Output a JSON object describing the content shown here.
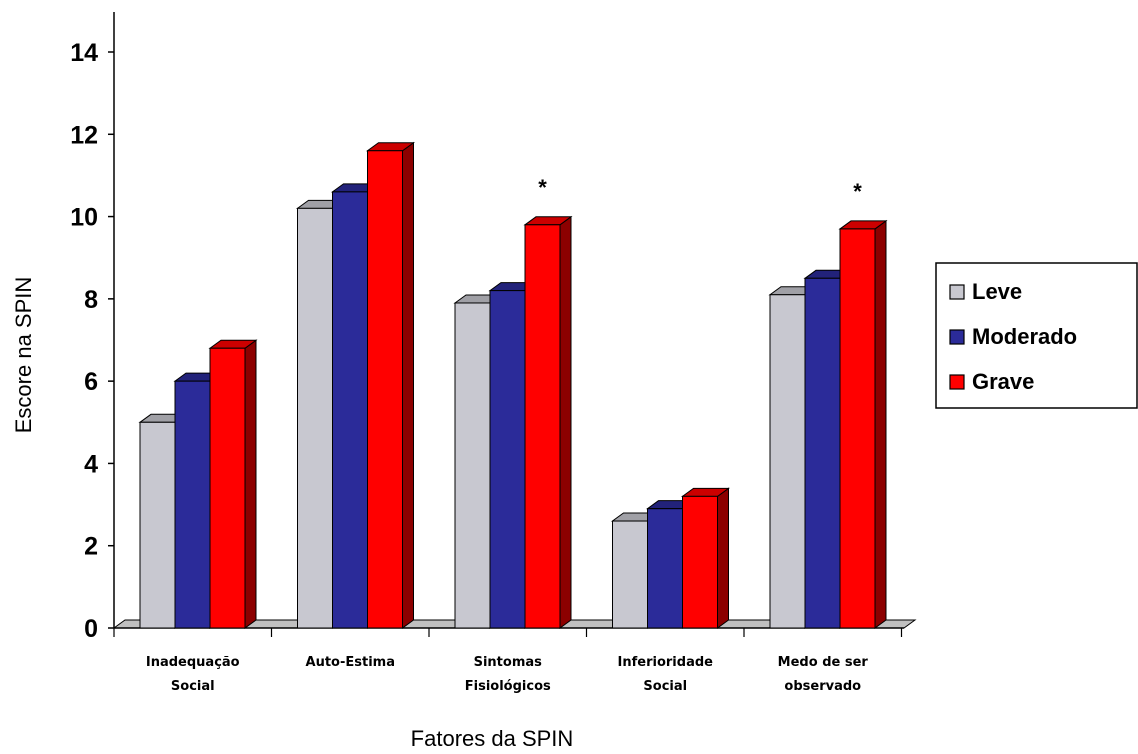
{
  "chart_data": {
    "type": "bar",
    "xlabel": "Fatores da SPIN",
    "ylabel": "Escore na SPIN",
    "ylim": [
      0,
      14
    ],
    "yticks": [
      "0",
      "2",
      "4",
      "6",
      "8",
      "10",
      "12",
      "14"
    ],
    "categories": [
      [
        "Inadequação",
        "Social"
      ],
      [
        "Auto-Estima"
      ],
      [
        "Sintomas",
        "Fisiológicos"
      ],
      [
        "Inferioridade",
        "Social"
      ],
      [
        "Medo de ser",
        "observado"
      ]
    ],
    "series": [
      {
        "name": "Leve",
        "color": "#c8c8d0",
        "values": [
          5.0,
          10.2,
          7.9,
          2.6,
          8.1
        ]
      },
      {
        "name": "Moderado",
        "color": "#2b2b99",
        "values": [
          6.0,
          10.6,
          8.2,
          2.9,
          8.5
        ]
      },
      {
        "name": "Grave",
        "color": "#ff0000",
        "values": [
          6.8,
          11.6,
          9.8,
          3.2,
          9.7
        ]
      }
    ],
    "annotations": [
      {
        "category_index": 2,
        "text": "*"
      },
      {
        "category_index": 4,
        "text": "*"
      }
    ],
    "legend_position": "right",
    "grid": false,
    "style": "3d"
  }
}
